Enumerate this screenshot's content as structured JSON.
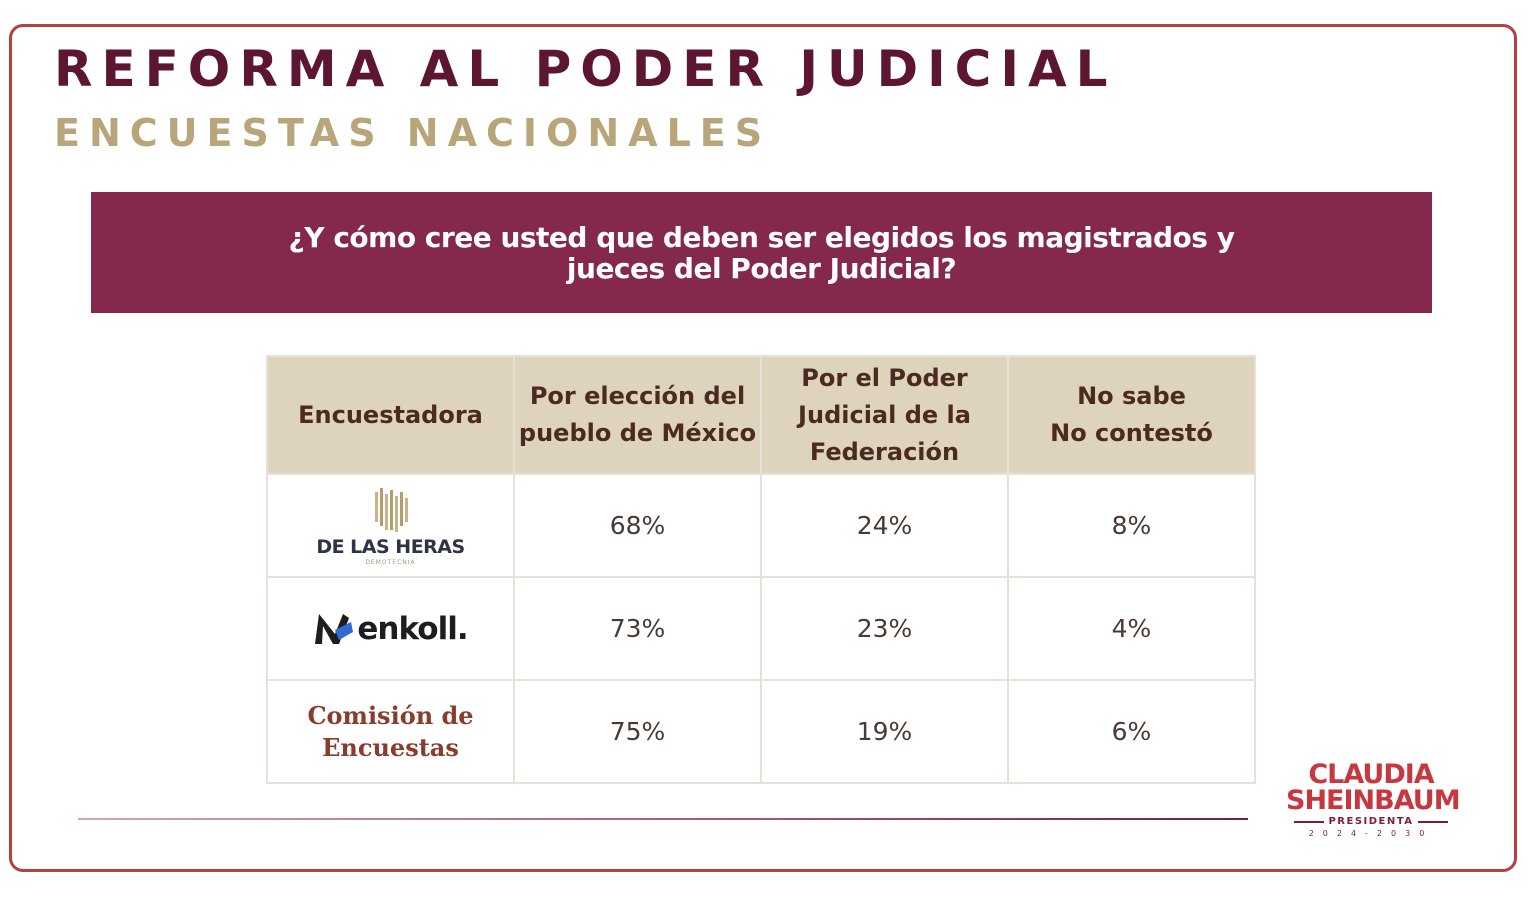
{
  "slide": {
    "title": "REFORMA AL PODER JUDICIAL",
    "subtitle": "ENCUESTAS NACIONALES",
    "question": "¿Y cómo cree usted que deben ser elegidos los magistrados y jueces del Poder Judicial?"
  },
  "table": {
    "headers": [
      "Encuestadora",
      "Por elección del\npueblo de México",
      "Por el Poder\nJudicial de la\nFederación",
      "No sabe\nNo contestó"
    ],
    "rows": [
      {
        "pollster": "DE LAS HERAS",
        "pollster_sub": "DEMOTECNIA",
        "values": [
          "68%",
          "24%",
          "8%"
        ]
      },
      {
        "pollster": "enkoll.",
        "values": [
          "73%",
          "23%",
          "4%"
        ]
      },
      {
        "pollster": "Comisión de\nEncuestas",
        "values": [
          "75%",
          "19%",
          "6%"
        ]
      }
    ]
  },
  "footer_logo": {
    "name": "CLAUDIA\nSHEINBAUM",
    "role": "PRESIDENTA",
    "years": "2024-2030"
  },
  "colors": {
    "title": "#5c1631",
    "subtitle": "#b9a57a",
    "banner": "#84294d",
    "header_bg": "#ded4be",
    "frame": "#b5403f"
  }
}
